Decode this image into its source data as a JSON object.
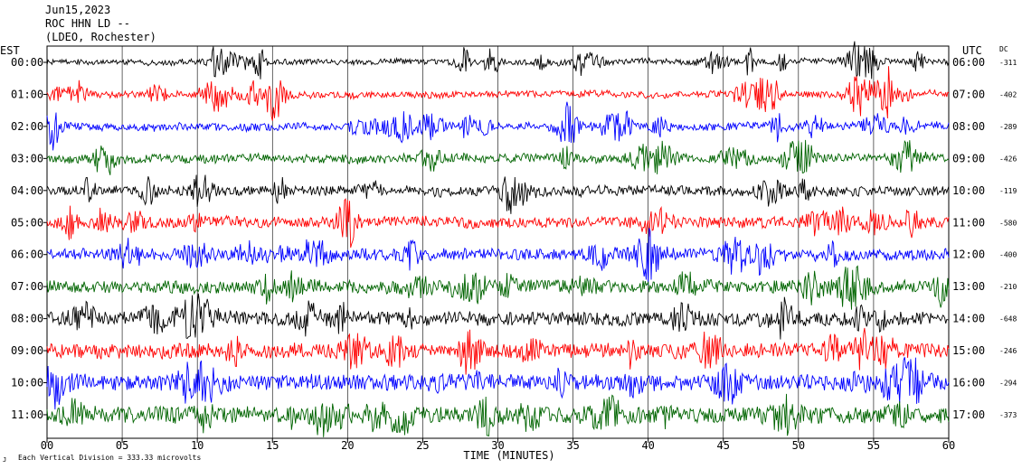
{
  "header": {
    "date": "Jun15,2023",
    "station": "ROC HHN LD --",
    "network": "(LDEO, Rochester)"
  },
  "chart_data": {
    "type": "line",
    "left_axis_label": "EST",
    "right_axis_label": "UTC",
    "dc_label": "DC",
    "xlabel": "TIME (MINUTES)",
    "x_ticks": [
      "00",
      "05",
      "10",
      "15",
      "20",
      "25",
      "30",
      "35",
      "40",
      "45",
      "50",
      "55",
      "60"
    ],
    "xlim": [
      0,
      60
    ],
    "grid": true,
    "footer_note": "Each Vertical Division =  333.33 microvolts",
    "traces": [
      {
        "est": "00:00",
        "utc": "06:00",
        "dc": "-311",
        "color": "#000000"
      },
      {
        "est": "01:00",
        "utc": "07:00",
        "dc": "-402",
        "color": "#ff0000"
      },
      {
        "est": "02:00",
        "utc": "08:00",
        "dc": "-289",
        "color": "#0000ff"
      },
      {
        "est": "03:00",
        "utc": "09:00",
        "dc": "-426",
        "color": "#006400"
      },
      {
        "est": "04:00",
        "utc": "10:00",
        "dc": "-119",
        "color": "#000000"
      },
      {
        "est": "05:00",
        "utc": "11:00",
        "dc": "-580",
        "color": "#ff0000"
      },
      {
        "est": "06:00",
        "utc": "12:00",
        "dc": "-400",
        "color": "#0000ff"
      },
      {
        "est": "07:00",
        "utc": "13:00",
        "dc": "-210",
        "color": "#006400"
      },
      {
        "est": "08:00",
        "utc": "14:00",
        "dc": "-648",
        "color": "#000000"
      },
      {
        "est": "09:00",
        "utc": "15:00",
        "dc": "-246",
        "color": "#ff0000"
      },
      {
        "est": "10:00",
        "utc": "16:00",
        "dc": "-294",
        "color": "#0000ff"
      },
      {
        "est": "11:00",
        "utc": "17:00",
        "dc": "-373",
        "color": "#006400"
      }
    ]
  }
}
